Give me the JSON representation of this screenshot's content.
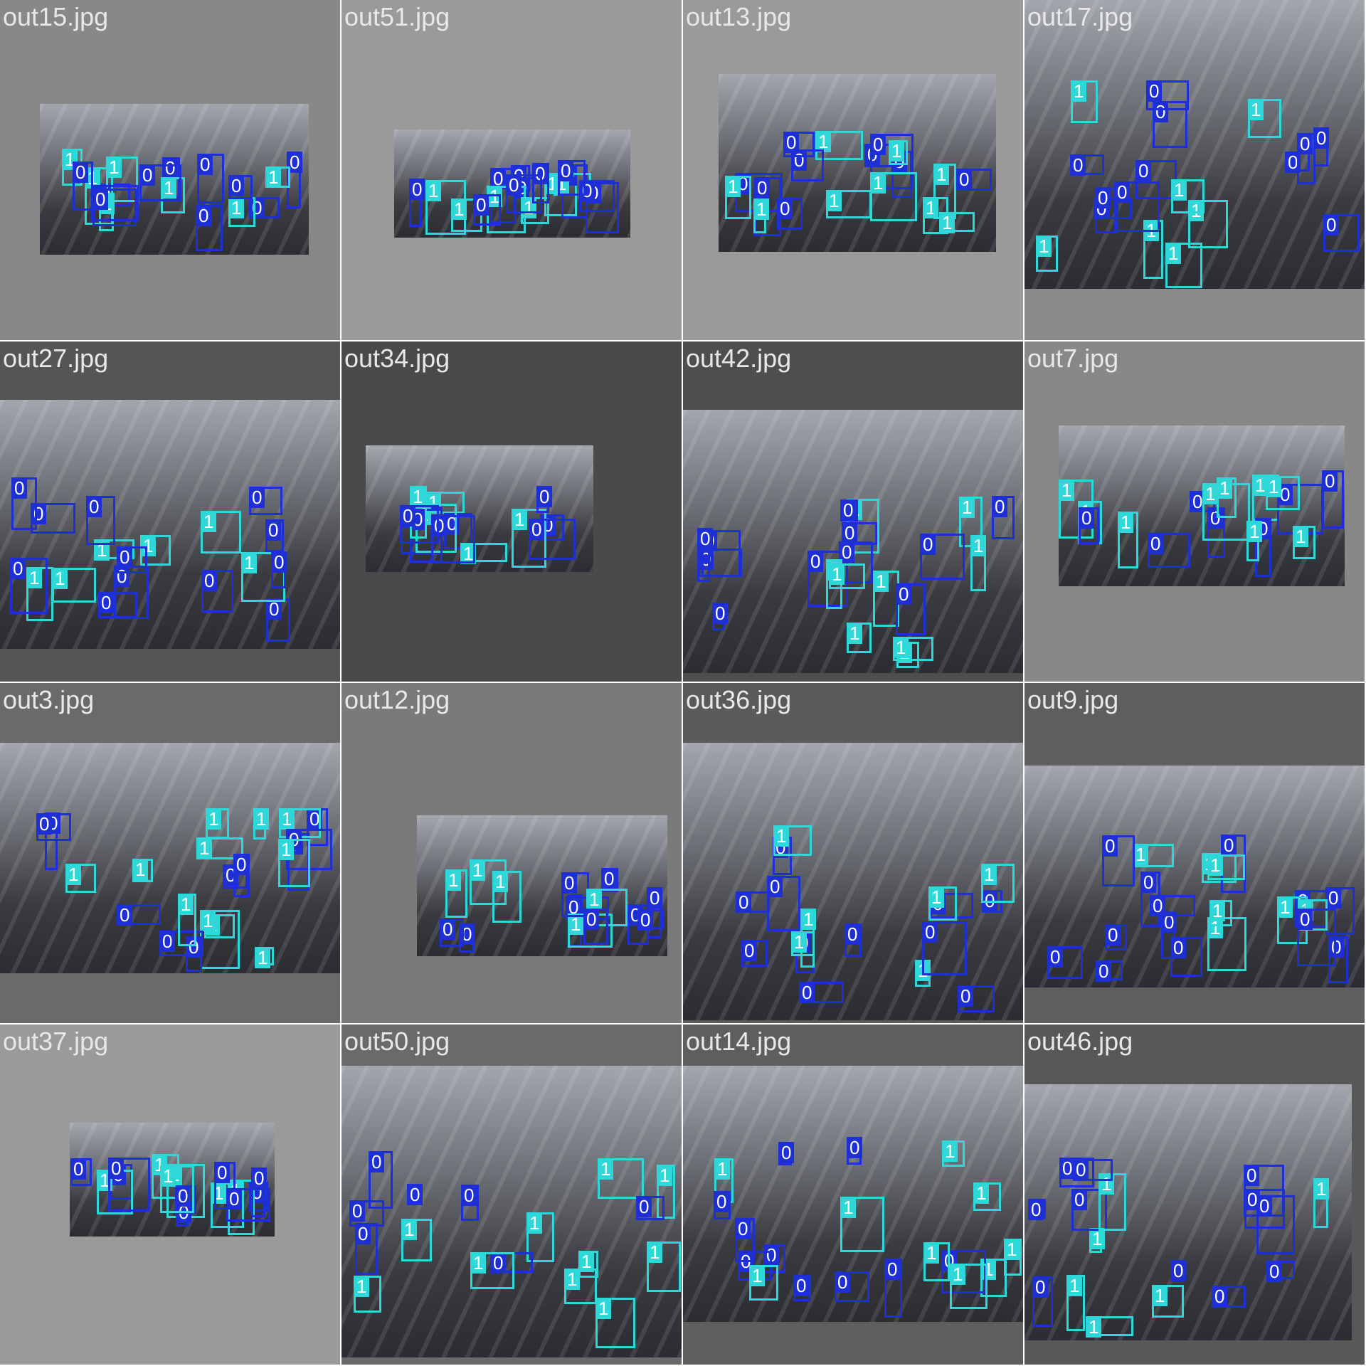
{
  "colors": {
    "class_0": "#1f2fd6",
    "class_1": "#2fd8d8",
    "photo_dark": "#2b2d33",
    "photo_light": "#a3a6ad"
  },
  "class_labels": [
    "0",
    "1"
  ],
  "tiles": [
    {
      "name": "out15.jpg",
      "bg": "#888888",
      "boxes": [
        {
          "cls": "0"
        },
        {
          "cls": "0"
        },
        {
          "cls": "1"
        },
        {
          "cls": "1"
        },
        {
          "cls": "0"
        },
        {
          "cls": "0"
        },
        {
          "cls": "1"
        },
        {
          "cls": "1"
        },
        {
          "cls": "0"
        },
        {
          "cls": "0"
        },
        {
          "cls": "1"
        },
        {
          "cls": "0"
        },
        {
          "cls": "0"
        },
        {
          "cls": "1"
        },
        {
          "cls": "0"
        },
        {
          "cls": "1"
        },
        {
          "cls": "0"
        },
        {
          "cls": "0"
        }
      ]
    },
    {
      "name": "out51.jpg",
      "bg": "#9a9a9a",
      "boxes": [
        {
          "cls": "0"
        },
        {
          "cls": "1"
        },
        {
          "cls": "0"
        },
        {
          "cls": "0"
        },
        {
          "cls": "0"
        },
        {
          "cls": "0"
        },
        {
          "cls": "1"
        },
        {
          "cls": "1"
        },
        {
          "cls": "0"
        },
        {
          "cls": "0"
        },
        {
          "cls": "1"
        },
        {
          "cls": "0"
        },
        {
          "cls": "0"
        },
        {
          "cls": "1"
        },
        {
          "cls": "1"
        },
        {
          "cls": "0"
        },
        {
          "cls": "0"
        }
      ]
    },
    {
      "name": "out13.jpg",
      "bg": "#9a9a9a",
      "boxes": [
        {
          "cls": "0"
        },
        {
          "cls": "0"
        },
        {
          "cls": "1"
        },
        {
          "cls": "1"
        },
        {
          "cls": "0"
        },
        {
          "cls": "0"
        },
        {
          "cls": "1"
        },
        {
          "cls": "1"
        },
        {
          "cls": "1"
        },
        {
          "cls": "0"
        },
        {
          "cls": "0"
        },
        {
          "cls": "1"
        },
        {
          "cls": "1"
        },
        {
          "cls": "0"
        },
        {
          "cls": "1"
        },
        {
          "cls": "0"
        },
        {
          "cls": "1"
        },
        {
          "cls": "0"
        }
      ]
    },
    {
      "name": "out17.jpg",
      "bg": "#8a8a8a",
      "boxes": [
        {
          "cls": "0"
        },
        {
          "cls": "1"
        },
        {
          "cls": "0"
        },
        {
          "cls": "1"
        },
        {
          "cls": "0"
        },
        {
          "cls": "1"
        },
        {
          "cls": "1"
        },
        {
          "cls": "0"
        },
        {
          "cls": "0"
        },
        {
          "cls": "0"
        },
        {
          "cls": "0"
        },
        {
          "cls": "0"
        },
        {
          "cls": "1"
        },
        {
          "cls": "0"
        },
        {
          "cls": "1"
        },
        {
          "cls": "0"
        },
        {
          "cls": "1"
        },
        {
          "cls": "0"
        }
      ]
    },
    {
      "name": "out27.jpg",
      "bg": "#555555",
      "boxes": [
        {
          "cls": "0"
        },
        {
          "cls": "0"
        },
        {
          "cls": "0"
        },
        {
          "cls": "1"
        },
        {
          "cls": "0"
        },
        {
          "cls": "1"
        },
        {
          "cls": "0"
        },
        {
          "cls": "0"
        },
        {
          "cls": "1"
        },
        {
          "cls": "0"
        },
        {
          "cls": "1"
        },
        {
          "cls": "1"
        },
        {
          "cls": "0"
        },
        {
          "cls": "0"
        },
        {
          "cls": "1"
        },
        {
          "cls": "0"
        },
        {
          "cls": "0"
        },
        {
          "cls": "0"
        }
      ]
    },
    {
      "name": "out34.jpg",
      "bg": "#4a4a4a",
      "boxes": [
        {
          "cls": "1"
        },
        {
          "cls": "0"
        },
        {
          "cls": "0"
        },
        {
          "cls": "1"
        },
        {
          "cls": "0"
        },
        {
          "cls": "0"
        },
        {
          "cls": "1"
        },
        {
          "cls": "0"
        },
        {
          "cls": "0"
        },
        {
          "cls": "1"
        },
        {
          "cls": "0"
        },
        {
          "cls": "1"
        },
        {
          "cls": "0"
        }
      ]
    },
    {
      "name": "out42.jpg",
      "bg": "#4e4e4e",
      "boxes": [
        {
          "cls": "1"
        },
        {
          "cls": "0"
        },
        {
          "cls": "1"
        },
        {
          "cls": "0"
        },
        {
          "cls": "0"
        },
        {
          "cls": "0"
        },
        {
          "cls": "1"
        },
        {
          "cls": "0"
        },
        {
          "cls": "0"
        },
        {
          "cls": "1"
        },
        {
          "cls": "0"
        },
        {
          "cls": "1"
        },
        {
          "cls": "0"
        },
        {
          "cls": "0"
        },
        {
          "cls": "1"
        },
        {
          "cls": "0"
        },
        {
          "cls": "1"
        },
        {
          "cls": "0"
        },
        {
          "cls": "1"
        },
        {
          "cls": "1"
        }
      ]
    },
    {
      "name": "out7.jpg",
      "bg": "#888888",
      "boxes": [
        {
          "cls": "1"
        },
        {
          "cls": "0"
        },
        {
          "cls": "1"
        },
        {
          "cls": "0"
        },
        {
          "cls": "0"
        },
        {
          "cls": "1"
        },
        {
          "cls": "0"
        },
        {
          "cls": "1"
        },
        {
          "cls": "1"
        },
        {
          "cls": "1"
        },
        {
          "cls": "0"
        },
        {
          "cls": "1"
        },
        {
          "cls": "0"
        },
        {
          "cls": "1"
        },
        {
          "cls": "0"
        },
        {
          "cls": "1"
        }
      ]
    },
    {
      "name": "out3.jpg",
      "bg": "#6a6a6a",
      "boxes": [
        {
          "cls": "0"
        },
        {
          "cls": "1"
        },
        {
          "cls": "0"
        },
        {
          "cls": "1"
        },
        {
          "cls": "0"
        },
        {
          "cls": "1"
        },
        {
          "cls": "0"
        },
        {
          "cls": "1"
        },
        {
          "cls": "1"
        },
        {
          "cls": "0"
        },
        {
          "cls": "1"
        },
        {
          "cls": "0"
        },
        {
          "cls": "1"
        },
        {
          "cls": "1"
        },
        {
          "cls": "0"
        },
        {
          "cls": "0"
        },
        {
          "cls": "1"
        },
        {
          "cls": "0"
        },
        {
          "cls": "1"
        },
        {
          "cls": "0"
        },
        {
          "cls": "1"
        }
      ]
    },
    {
      "name": "out12.jpg",
      "bg": "#7a7a7a",
      "boxes": [
        {
          "cls": "0"
        },
        {
          "cls": "0"
        },
        {
          "cls": "0"
        },
        {
          "cls": "0"
        },
        {
          "cls": "0"
        },
        {
          "cls": "1"
        },
        {
          "cls": "1"
        },
        {
          "cls": "0"
        },
        {
          "cls": "0"
        },
        {
          "cls": "1"
        },
        {
          "cls": "0"
        },
        {
          "cls": "0"
        },
        {
          "cls": "1"
        },
        {
          "cls": "0"
        },
        {
          "cls": "1"
        }
      ]
    },
    {
      "name": "out36.jpg",
      "bg": "#5a5a5a",
      "boxes": [
        {
          "cls": "0"
        },
        {
          "cls": "0"
        },
        {
          "cls": "0"
        },
        {
          "cls": "0"
        },
        {
          "cls": "1"
        },
        {
          "cls": "0"
        },
        {
          "cls": "0"
        },
        {
          "cls": "0"
        },
        {
          "cls": "1"
        },
        {
          "cls": "0"
        },
        {
          "cls": "1"
        },
        {
          "cls": "0"
        },
        {
          "cls": "1"
        },
        {
          "cls": "0"
        },
        {
          "cls": "1"
        },
        {
          "cls": "1"
        },
        {
          "cls": "0"
        }
      ]
    },
    {
      "name": "out9.jpg",
      "bg": "#5e5e5e",
      "boxes": [
        {
          "cls": "1"
        },
        {
          "cls": "0"
        },
        {
          "cls": "0"
        },
        {
          "cls": "1"
        },
        {
          "cls": "0"
        },
        {
          "cls": "0"
        },
        {
          "cls": "0"
        },
        {
          "cls": "1"
        },
        {
          "cls": "0"
        },
        {
          "cls": "0"
        },
        {
          "cls": "0"
        },
        {
          "cls": "1"
        },
        {
          "cls": "0"
        },
        {
          "cls": "1"
        },
        {
          "cls": "1"
        },
        {
          "cls": "0"
        },
        {
          "cls": "0"
        },
        {
          "cls": "1"
        },
        {
          "cls": "0"
        },
        {
          "cls": "0"
        }
      ]
    },
    {
      "name": "out37.jpg",
      "bg": "#9a9a9a",
      "boxes": [
        {
          "cls": "1"
        },
        {
          "cls": "0"
        },
        {
          "cls": "0"
        },
        {
          "cls": "1"
        },
        {
          "cls": "1"
        },
        {
          "cls": "0"
        },
        {
          "cls": "1"
        },
        {
          "cls": "0"
        },
        {
          "cls": "0"
        },
        {
          "cls": "0"
        },
        {
          "cls": "1"
        },
        {
          "cls": "0"
        },
        {
          "cls": "1"
        },
        {
          "cls": "0"
        },
        {
          "cls": "0"
        }
      ]
    },
    {
      "name": "out50.jpg",
      "bg": "#6a6a6a",
      "boxes": [
        {
          "cls": "1"
        },
        {
          "cls": "0"
        },
        {
          "cls": "1"
        },
        {
          "cls": "1"
        },
        {
          "cls": "0"
        },
        {
          "cls": "1"
        },
        {
          "cls": "0"
        },
        {
          "cls": "1"
        },
        {
          "cls": "0"
        },
        {
          "cls": "1"
        },
        {
          "cls": "1"
        },
        {
          "cls": "0"
        },
        {
          "cls": "1"
        },
        {
          "cls": "0"
        },
        {
          "cls": "1"
        },
        {
          "cls": "1"
        },
        {
          "cls": "0"
        }
      ]
    },
    {
      "name": "out14.jpg",
      "bg": "#5e5e5e",
      "boxes": [
        {
          "cls": "0"
        },
        {
          "cls": "1"
        },
        {
          "cls": "1"
        },
        {
          "cls": "0"
        },
        {
          "cls": "0"
        },
        {
          "cls": "0"
        },
        {
          "cls": "1"
        },
        {
          "cls": "1"
        },
        {
          "cls": "1"
        },
        {
          "cls": "0"
        },
        {
          "cls": "1"
        },
        {
          "cls": "1"
        },
        {
          "cls": "0"
        },
        {
          "cls": "1"
        },
        {
          "cls": "0"
        },
        {
          "cls": "1"
        },
        {
          "cls": "0"
        },
        {
          "cls": "0"
        },
        {
          "cls": "0"
        }
      ]
    },
    {
      "name": "out46.jpg",
      "bg": "#585858",
      "boxes": [
        {
          "cls": "0"
        },
        {
          "cls": "0"
        },
        {
          "cls": "0"
        },
        {
          "cls": "0"
        },
        {
          "cls": "1"
        },
        {
          "cls": "0"
        },
        {
          "cls": "1"
        },
        {
          "cls": "0"
        },
        {
          "cls": "1"
        },
        {
          "cls": "0"
        },
        {
          "cls": "1"
        },
        {
          "cls": "0"
        },
        {
          "cls": "1"
        },
        {
          "cls": "0"
        },
        {
          "cls": "1"
        },
        {
          "cls": "0"
        },
        {
          "cls": "0"
        }
      ]
    }
  ]
}
